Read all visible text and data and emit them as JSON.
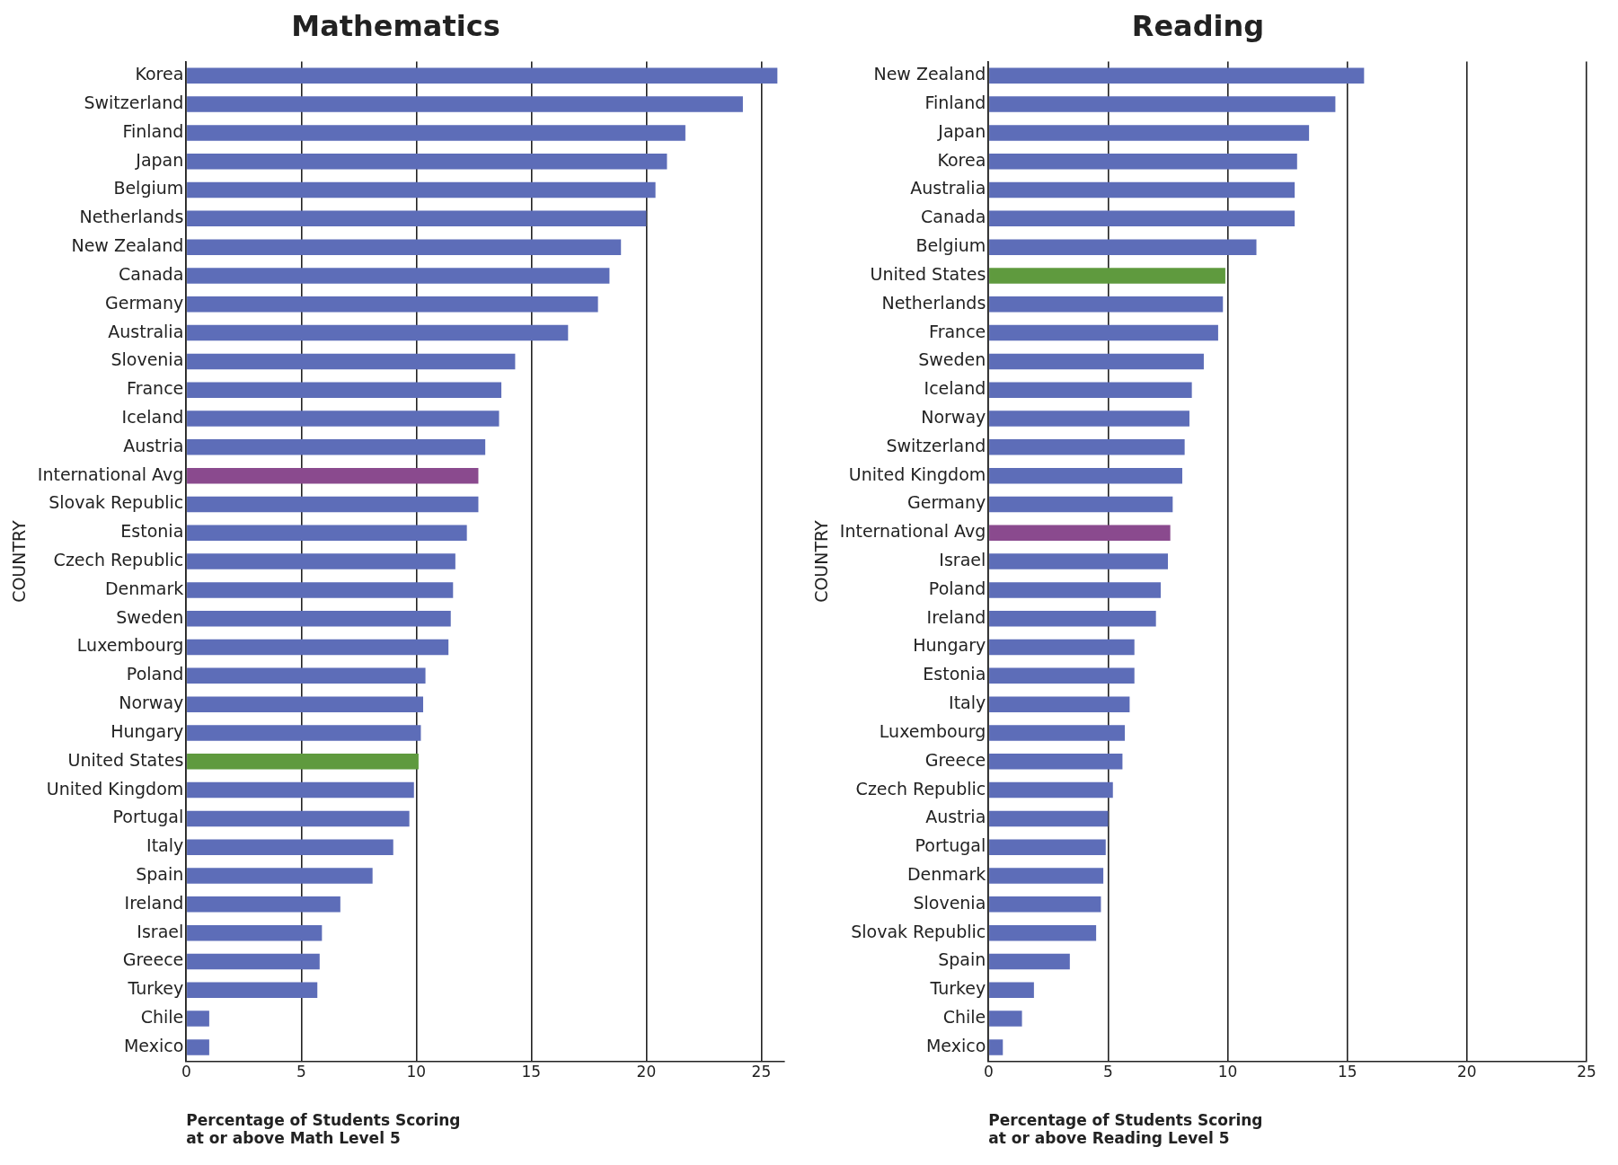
{
  "chart_data": [
    {
      "type": "bar",
      "orientation": "horizontal",
      "title": "Mathematics",
      "ylabel": "COUNTRY",
      "xlabel": "Percentage of Students Scoring at or above Math Level 5",
      "categories": [
        "Korea",
        "Switzerland",
        "Finland",
        "Japan",
        "Belgium",
        "Netherlands",
        "New Zealand",
        "Canada",
        "Germany",
        "Australia",
        "Slovenia",
        "France",
        "Iceland",
        "Austria",
        "International Avg",
        "Slovak Republic",
        "Estonia",
        "Czech Republic",
        "Denmark",
        "Sweden",
        "Luxembourg",
        "Poland",
        "Norway",
        "Hungary",
        "United States",
        "United Kingdom",
        "Portugal",
        "Italy",
        "Spain",
        "Ireland",
        "Israel",
        "Greece",
        "Turkey",
        "Chile",
        "Mexico"
      ],
      "values": [
        25.7,
        24.2,
        21.7,
        20.9,
        20.4,
        20.0,
        18.9,
        18.4,
        17.9,
        16.6,
        14.3,
        13.7,
        13.6,
        13.0,
        12.7,
        12.7,
        12.2,
        11.7,
        11.6,
        11.5,
        11.4,
        10.4,
        10.3,
        10.2,
        10.1,
        9.9,
        9.7,
        9.0,
        8.1,
        6.7,
        5.9,
        5.8,
        5.7,
        1.0,
        1.0
      ],
      "colors": [
        "#5d6db8",
        "#5d6db8",
        "#5d6db8",
        "#5d6db8",
        "#5d6db8",
        "#5d6db8",
        "#5d6db8",
        "#5d6db8",
        "#5d6db8",
        "#5d6db8",
        "#5d6db8",
        "#5d6db8",
        "#5d6db8",
        "#5d6db8",
        "#8a4a8e",
        "#5d6db8",
        "#5d6db8",
        "#5d6db8",
        "#5d6db8",
        "#5d6db8",
        "#5d6db8",
        "#5d6db8",
        "#5d6db8",
        "#5d6db8",
        "#5f9a3e",
        "#5d6db8",
        "#5d6db8",
        "#5d6db8",
        "#5d6db8",
        "#5d6db8",
        "#5d6db8",
        "#5d6db8",
        "#5d6db8",
        "#5d6db8",
        "#5d6db8"
      ],
      "xlim": [
        0,
        26
      ],
      "xticks": [
        0,
        5,
        10,
        15,
        20,
        25
      ],
      "grid": "x",
      "legend": false
    },
    {
      "type": "bar",
      "orientation": "horizontal",
      "title": "Reading",
      "ylabel": "COUNTRY",
      "xlabel": "Percentage of Students Scoring at or above Reading Level 5",
      "categories": [
        "New Zealand",
        "Finland",
        "Japan",
        "Korea",
        "Australia",
        "Canada",
        "Belgium",
        "United States",
        "Netherlands",
        "France",
        "Sweden",
        "Iceland",
        "Norway",
        "Switzerland",
        "United Kingdom",
        "Germany",
        "International Avg",
        "Israel",
        "Poland",
        "Ireland",
        "Hungary",
        "Estonia",
        "Italy",
        "Luxembourg",
        "Greece",
        "Czech Republic",
        "Austria",
        "Portugal",
        "Denmark",
        "Slovenia",
        "Slovak Republic",
        "Spain",
        "Turkey",
        "Chile",
        "Mexico"
      ],
      "values": [
        15.7,
        14.5,
        13.4,
        12.9,
        12.8,
        12.8,
        11.2,
        9.9,
        9.8,
        9.6,
        9.0,
        8.5,
        8.4,
        8.2,
        8.1,
        7.7,
        7.6,
        7.5,
        7.2,
        7.0,
        6.1,
        6.1,
        5.9,
        5.7,
        5.6,
        5.2,
        5.0,
        4.9,
        4.8,
        4.7,
        4.5,
        3.4,
        1.9,
        1.4,
        0.6
      ],
      "colors": [
        "#5d6db8",
        "#5d6db8",
        "#5d6db8",
        "#5d6db8",
        "#5d6db8",
        "#5d6db8",
        "#5d6db8",
        "#5f9a3e",
        "#5d6db8",
        "#5d6db8",
        "#5d6db8",
        "#5d6db8",
        "#5d6db8",
        "#5d6db8",
        "#5d6db8",
        "#5d6db8",
        "#8a4a8e",
        "#5d6db8",
        "#5d6db8",
        "#5d6db8",
        "#5d6db8",
        "#5d6db8",
        "#5d6db8",
        "#5d6db8",
        "#5d6db8",
        "#5d6db8",
        "#5d6db8",
        "#5d6db8",
        "#5d6db8",
        "#5d6db8",
        "#5d6db8",
        "#5d6db8",
        "#5d6db8",
        "#5d6db8",
        "#5d6db8"
      ],
      "xlim": [
        0,
        25
      ],
      "xticks": [
        0,
        5,
        10,
        15,
        20,
        25
      ],
      "grid": "x",
      "legend": false
    }
  ]
}
